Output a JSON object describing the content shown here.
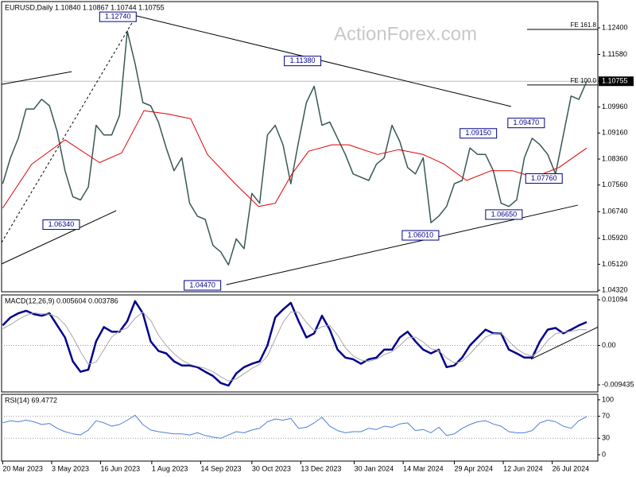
{
  "chart_data": [
    {
      "type": "line",
      "title": "EURUSD,Daily  1.10840 1.10867 1.10744 1.10755",
      "watermark": "ActionForex.com",
      "x": [
        "2023-03-20",
        "2023-03-27",
        "2023-04-03",
        "2023-04-10",
        "2023-04-17",
        "2023-04-24",
        "2023-05-01",
        "2023-05-08",
        "2023-05-15",
        "2023-05-22",
        "2023-05-29",
        "2023-06-05",
        "2023-06-12",
        "2023-06-19",
        "2023-06-26",
        "2023-07-03",
        "2023-07-10",
        "2023-07-17",
        "2023-07-24",
        "2023-07-31",
        "2023-08-07",
        "2023-08-14",
        "2023-08-21",
        "2023-08-28",
        "2023-09-04",
        "2023-09-11",
        "2023-09-18",
        "2023-09-25",
        "2023-10-02",
        "2023-10-09",
        "2023-10-16",
        "2023-10-23",
        "2023-10-30",
        "2023-11-06",
        "2023-11-13",
        "2023-11-20",
        "2023-11-27",
        "2023-12-04",
        "2023-12-11",
        "2023-12-18",
        "2023-12-25",
        "2024-01-01",
        "2024-01-08",
        "2024-01-15",
        "2024-01-22",
        "2024-01-29",
        "2024-02-05",
        "2024-02-12",
        "2024-02-19",
        "2024-02-26",
        "2024-03-04",
        "2024-03-11",
        "2024-03-18",
        "2024-03-25",
        "2024-04-01",
        "2024-04-08",
        "2024-04-15",
        "2024-04-22",
        "2024-04-29",
        "2024-05-06",
        "2024-05-13",
        "2024-05-20",
        "2024-05-27",
        "2024-06-03",
        "2024-06-10",
        "2024-06-17",
        "2024-06-24",
        "2024-07-01",
        "2024-07-08",
        "2024-07-15",
        "2024-07-22",
        "2024-07-29",
        "2024-08-05",
        "2024-08-12",
        "2024-08-19",
        "2024-08-26"
      ],
      "xlim": [
        "2023-03-19",
        "2024-09-05"
      ],
      "xticks": [
        {
          "value": "2023-03-20",
          "label": "20 Mar 2023"
        },
        {
          "value": "2023-05-03",
          "label": "3 May 2023"
        },
        {
          "value": "2023-06-16",
          "label": "16 Jun 2023"
        },
        {
          "value": "2023-08-01",
          "label": "1 Aug 2023"
        },
        {
          "value": "2023-09-14",
          "label": "14 Sep 2023"
        },
        {
          "value": "2023-10-30",
          "label": "30 Oct 2023"
        },
        {
          "value": "2023-12-13",
          "label": "13 Dec 2023"
        },
        {
          "value": "2024-01-30",
          "label": "30 Jan 2024"
        },
        {
          "value": "2024-03-14",
          "label": "14 Mar 2024"
        },
        {
          "value": "2024-04-29",
          "label": "29 Apr 2024"
        },
        {
          "value": "2024-06-12",
          "label": "12 Jun 2024"
        },
        {
          "value": "2024-07-26",
          "label": "26 Jul 2024"
        }
      ],
      "ylim": [
        1.04273,
        1.13208
      ],
      "yticks": [
        {
          "value": 1.124,
          "label": "1.12400"
        },
        {
          "value": 1.1158,
          "label": "1.11580"
        },
        {
          "value": 1.1076,
          "label": "1.10760"
        },
        {
          "value": 1.0996,
          "label": "1.09960"
        },
        {
          "value": 1.0916,
          "label": "1.09160"
        },
        {
          "value": 1.0836,
          "label": "1.08360"
        },
        {
          "value": 1.0756,
          "label": "1.07560"
        },
        {
          "value": 1.0674,
          "label": "1.06740"
        },
        {
          "value": 1.0592,
          "label": "1.05920"
        },
        {
          "value": 1.0512,
          "label": "1.05120"
        },
        {
          "value": 1.0432,
          "label": "1.04320"
        }
      ],
      "series": [
        {
          "color": "#3a5656",
          "values": [
            1.076,
            1.084,
            1.09,
            1.099,
            1.099,
            1.102,
            1.1,
            1.092,
            1.08,
            1.072,
            1.071,
            1.075,
            1.094,
            1.091,
            1.091,
            1.097,
            1.123,
            1.113,
            1.101,
            1.1,
            1.095,
            1.087,
            1.08,
            1.084,
            1.07,
            1.066,
            1.065,
            1.057,
            1.055,
            1.051,
            1.059,
            1.056,
            1.073,
            1.07,
            1.091,
            1.094,
            1.088,
            1.076,
            1.089,
            1.101,
            1.106,
            1.094,
            1.095,
            1.09,
            1.085,
            1.079,
            1.078,
            1.077,
            1.082,
            1.084,
            1.094,
            1.089,
            1.081,
            1.079,
            1.084,
            1.064,
            1.066,
            1.069,
            1.076,
            1.077,
            1.087,
            1.085,
            1.085,
            1.08,
            1.07,
            1.069,
            1.071,
            1.084,
            1.09,
            1.088,
            1.085,
            1.079,
            1.091,
            1.103,
            1.102,
            1.10755
          ]
        },
        {
          "color": "#e00000",
          "x": [
            "2023-03-20",
            "2023-04-15",
            "2023-05-15",
            "2023-06-15",
            "2023-07-05",
            "2023-07-25",
            "2023-08-15",
            "2023-09-05",
            "2023-09-20",
            "2023-10-15",
            "2023-11-05",
            "2023-11-20",
            "2023-12-05",
            "2023-12-20",
            "2024-01-10",
            "2024-01-25",
            "2024-02-20",
            "2024-03-10",
            "2024-04-01",
            "2024-04-20",
            "2024-05-10",
            "2024-06-01",
            "2024-06-20",
            "2024-07-10",
            "2024-08-01",
            "2024-08-26"
          ],
          "values": [
            1.0685,
            1.082,
            1.0895,
            1.0825,
            1.0855,
            1.0985,
            1.0975,
            1.096,
            1.085,
            1.076,
            1.069,
            1.07,
            1.079,
            1.086,
            1.088,
            1.088,
            1.085,
            1.0865,
            1.085,
            1.082,
            1.077,
            1.08,
            1.08,
            1.078,
            1.081,
            1.087
          ]
        }
      ],
      "last_price": 1.10755,
      "trendlines": [
        {
          "x": [
            "2023-07-18",
            "2024-06-19"
          ],
          "y": [
            1.1277,
            1.0998
          ]
        },
        {
          "x": [
            "2023-10-07",
            "2024-08-18"
          ],
          "y": [
            1.0449,
            1.0694
          ]
        },
        {
          "x": [
            "2023-03-19",
            "2023-05-21"
          ],
          "y": [
            1.1066,
            1.1105
          ]
        },
        {
          "x": [
            "2023-03-19",
            "2023-06-30"
          ],
          "y": [
            1.0513,
            1.0677
          ]
        },
        {
          "x": [
            "2023-03-19",
            "2023-07-18"
          ],
          "y": [
            1.0579,
            1.1277
          ],
          "dashed": true
        }
      ],
      "fe_levels": [
        {
          "label": "FE 161.8",
          "value": 1.1235
        },
        {
          "label": "FE 100.0",
          "value": 1.1064
        }
      ],
      "annotations": [
        {
          "label": "1.12740",
          "value": 1.1274,
          "x": "2023-07-18"
        },
        {
          "label": "1.11380",
          "value": 1.1138,
          "x": "2023-12-31"
        },
        {
          "label": "1.06340",
          "value": 1.0634,
          "x": "2023-05-28"
        },
        {
          "label": "1.04470",
          "value": 1.0447,
          "x": "2023-10-02"
        },
        {
          "label": "1.06010",
          "value": 1.0601,
          "x": "2024-04-15"
        },
        {
          "label": "1.09150",
          "value": 1.0915,
          "x": "2024-06-06"
        },
        {
          "label": "1.09470",
          "value": 1.0947,
          "x": "2024-07-19"
        },
        {
          "label": "1.07760",
          "value": 1.0776,
          "x": "2024-08-04"
        },
        {
          "label": "1.06650",
          "value": 1.0665,
          "x": "2024-06-29"
        }
      ]
    },
    {
      "type": "line",
      "title": "MACD(12,26,9) 0.005604 0.003786",
      "ylim": [
        -0.01113,
        0.01209
      ],
      "yticks": [
        0.01094,
        {
          "value": 0,
          "label": "0.00"
        },
        -0.009435
      ],
      "levels": [
        0
      ],
      "series": [
        {
          "color": "#00008b",
          "values": [
            0.0048,
            0.0067,
            0.0077,
            0.0083,
            0.0075,
            0.0071,
            0.0077,
            0.0048,
            0.0019,
            -0.0038,
            -0.0063,
            -0.0058,
            0.001,
            0.0044,
            0.0033,
            0.0033,
            0.0058,
            0.0106,
            0.0077,
            0.001,
            -0.0013,
            -0.0019,
            -0.0038,
            -0.0048,
            -0.0048,
            -0.0052,
            -0.0063,
            -0.0073,
            -0.009,
            -0.0096,
            -0.0067,
            -0.0052,
            -0.0044,
            -0.0038,
            0,
            0.0067,
            0.0086,
            0.0102,
            0.0058,
            0.0019,
            0.0029,
            0.0071,
            0.0038,
            -0.001,
            -0.0029,
            -0.0033,
            -0.0044,
            -0.0033,
            -0.0029,
            -0.001,
            -0.001,
            0.0019,
            0.0033,
            0.001,
            -0.001,
            -0.0019,
            -0.001,
            -0.0052,
            -0.0048,
            -0.0029,
            0,
            0.0019,
            0.0038,
            0.0029,
            0.0029,
            -0.001,
            -0.0019,
            -0.0029,
            -0.0029,
            0.001,
            0.0038,
            0.0042,
            0.0029,
            0.0038,
            0.0048,
            0.0056
          ]
        },
        {
          "color": "#a8a8a8",
          "values": [
            0.004,
            0.005,
            0.0062,
            0.0072,
            0.0078,
            0.0076,
            0.0075,
            0.0068,
            0.005,
            0.002,
            -0.0015,
            -0.0045,
            -0.004,
            -0.001,
            0.002,
            0.0035,
            0.0042,
            0.0065,
            0.008,
            0.006,
            0.0025,
            0.0,
            -0.002,
            -0.0035,
            -0.0045,
            -0.005,
            -0.0055,
            -0.0063,
            -0.0075,
            -0.0085,
            -0.008,
            -0.0068,
            -0.0055,
            -0.0045,
            -0.0025,
            0.0015,
            0.0055,
            0.008,
            0.008,
            0.0055,
            0.0035,
            0.0045,
            0.0048,
            0.0025,
            -0.0005,
            -0.0025,
            -0.0035,
            -0.0038,
            -0.0033,
            -0.0022,
            -0.0015,
            0.0,
            0.0018,
            0.002,
            0.0008,
            -0.0008,
            -0.0012,
            -0.003,
            -0.0042,
            -0.0038,
            -0.002,
            0.0,
            0.002,
            0.0028,
            0.003,
            0.001,
            -0.0008,
            -0.002,
            -0.0026,
            -0.0012,
            0.0012,
            0.0028,
            0.0032,
            0.0034,
            0.0038,
            0.0038
          ]
        }
      ],
      "trendlines": [
        {
          "x": [
            "2024-07-07",
            "2024-09-05"
          ],
          "y": [
            -0.0033,
            0.0044
          ]
        }
      ]
    },
    {
      "type": "line",
      "title": "RSI(14) 69.4772",
      "ylim": [
        -11.6,
        110
      ],
      "yticks": [
        100,
        70,
        30,
        0
      ],
      "levels": [
        70,
        30
      ],
      "series": [
        {
          "color": "#4f7fd6",
          "values": [
            58,
            62,
            60,
            63,
            60,
            55,
            57,
            48,
            42,
            38,
            36,
            45,
            62,
            58,
            52,
            55,
            63,
            72,
            55,
            45,
            42,
            40,
            38,
            38,
            36,
            40,
            35,
            32,
            30,
            36,
            42,
            40,
            45,
            48,
            60,
            65,
            63,
            66,
            48,
            50,
            58,
            68,
            52,
            44,
            40,
            42,
            42,
            48,
            46,
            52,
            50,
            56,
            58,
            44,
            46,
            40,
            50,
            35,
            38,
            48,
            55,
            60,
            62,
            56,
            52,
            42,
            40,
            40,
            44,
            58,
            63,
            60,
            52,
            48,
            62,
            69.4772
          ]
        }
      ]
    }
  ]
}
